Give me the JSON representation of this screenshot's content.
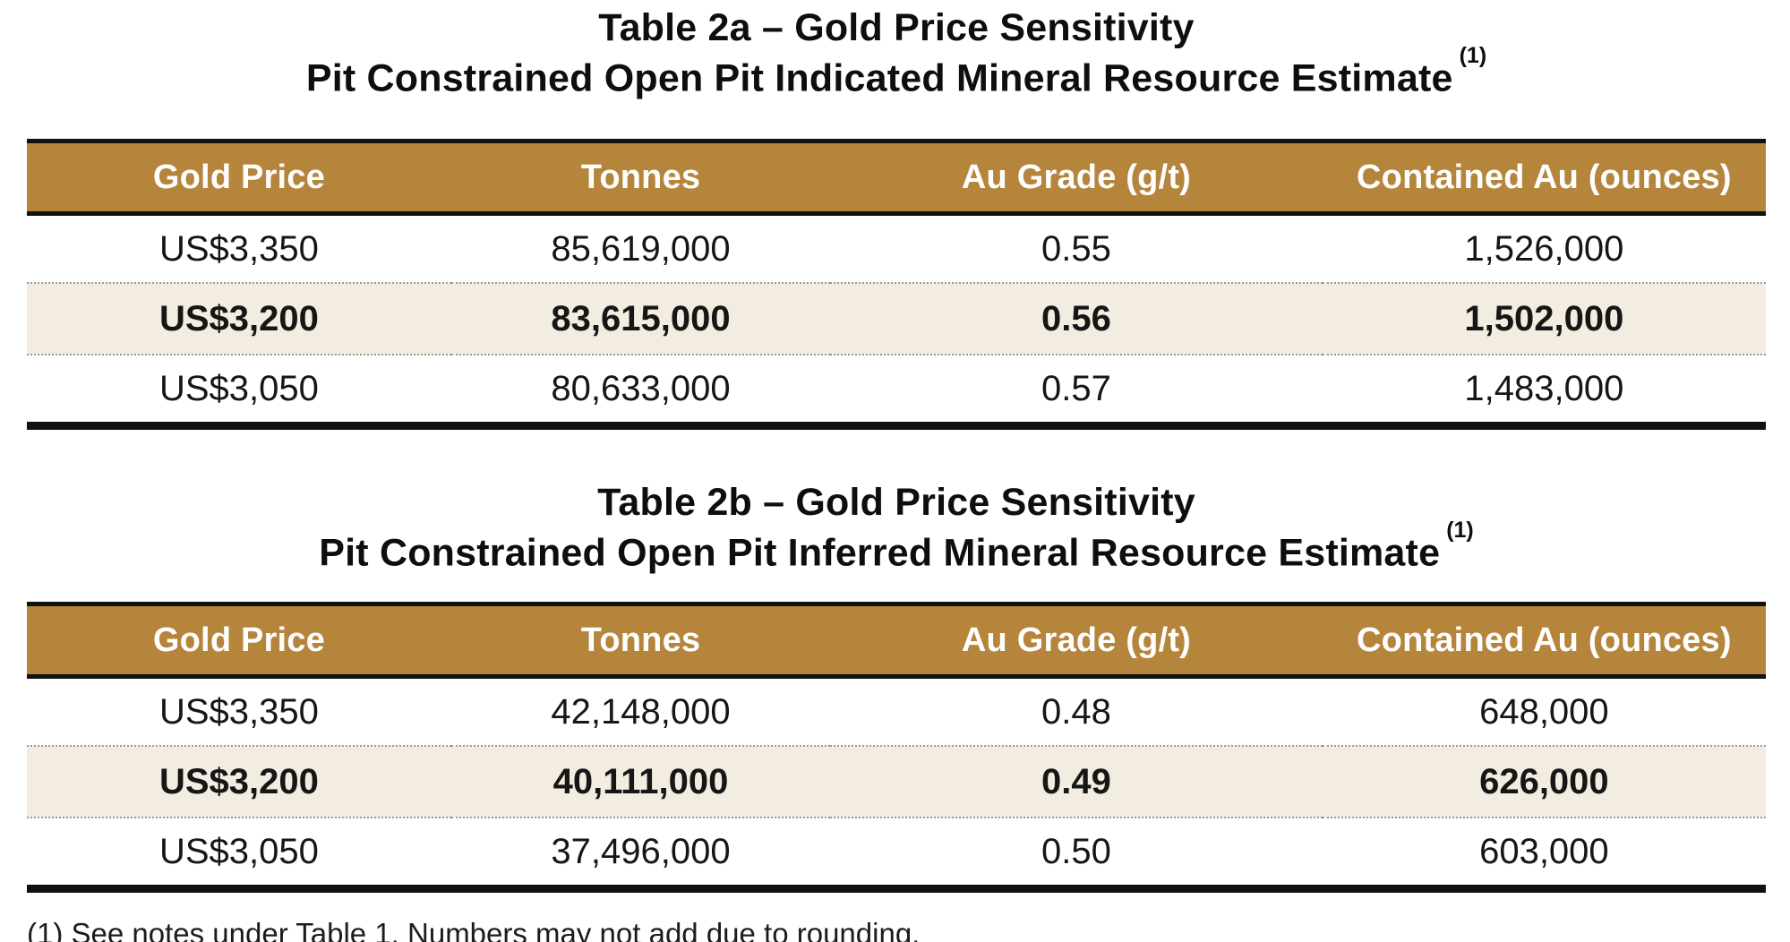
{
  "colors": {
    "header_bg": "#B5853C",
    "header_text": "#FFFFFF",
    "highlight_bg": "#F3ECE1",
    "border_black": "#111111",
    "dotted_gray": "#9A9A9A",
    "text_color": "#161616",
    "page_bg": "#FFFFFF"
  },
  "tables": [
    {
      "title_line1": "Table 2a – Gold Price Sensitivity",
      "title_line2": "Pit Constrained Open Pit Indicated Mineral Resource Estimate",
      "footnote_ref": "(1)",
      "columns": [
        "Gold Price",
        "Tonnes",
        "Au Grade (g/t)",
        "Contained Au (ounces)"
      ],
      "rows": [
        {
          "highlight": false,
          "cells": [
            "US$3,350",
            "85,619,000",
            "0.55",
            "1,526,000"
          ]
        },
        {
          "highlight": true,
          "cells": [
            "US$3,200",
            "83,615,000",
            "0.56",
            "1,502,000"
          ]
        },
        {
          "highlight": false,
          "cells": [
            "US$3,050",
            "80,633,000",
            "0.57",
            "1,483,000"
          ]
        }
      ]
    },
    {
      "title_line1": "Table 2b – Gold Price Sensitivity",
      "title_line2": "Pit Constrained Open Pit Inferred Mineral Resource Estimate",
      "footnote_ref": "(1)",
      "columns": [
        "Gold Price",
        "Tonnes",
        "Au Grade (g/t)",
        "Contained Au (ounces)"
      ],
      "rows": [
        {
          "highlight": false,
          "cells": [
            "US$3,350",
            "42,148,000",
            "0.48",
            "648,000"
          ]
        },
        {
          "highlight": true,
          "cells": [
            "US$3,200",
            "40,111,000",
            "0.49",
            "626,000"
          ]
        },
        {
          "highlight": false,
          "cells": [
            "US$3,050",
            "37,496,000",
            "0.50",
            "603,000"
          ]
        }
      ]
    }
  ],
  "footnote": "(1) See notes under Table 1. Numbers may not add due to rounding."
}
